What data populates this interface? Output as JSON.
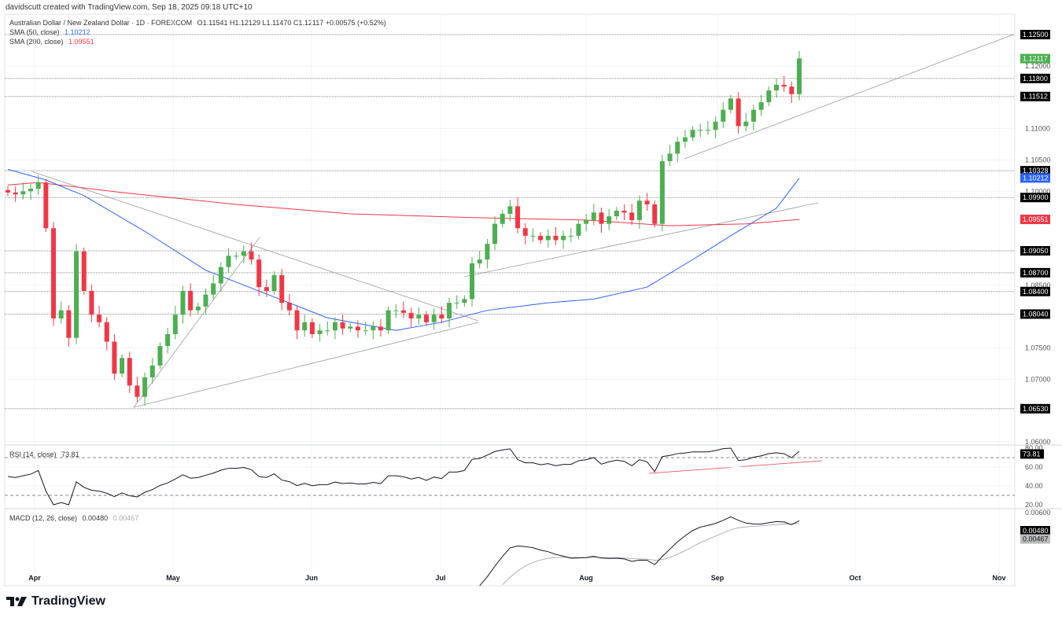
{
  "header": {
    "credit": "davidscutt created with TradingView.com, Sep 18, 2025 09:18 UTC+10",
    "symbol_line": "Australian Dollar / New Zealand Dollar · 1D · FOREXCOM",
    "ohlc": "O1.11541  H1.12129  L1.11470  C1.12117  +0.00575 (+0.52%)",
    "sma50_label": "SMA (50, close)",
    "sma50_value": "1.10212",
    "sma200_label": "SMA (200, close)",
    "sma200_value": "1.09551",
    "rsi_label": "RSI (14, close)",
    "rsi_value": "73.81",
    "macd_label": "MACD (12, 26, close)",
    "macd_value": "0.00480",
    "signal_value": "0.00467"
  },
  "logo": "TradingView",
  "colors": {
    "up": "#4caf50",
    "down": "#f23645",
    "sma50": "#2962ff",
    "sma200": "#f23645",
    "rsi_trend": "#f23645"
  },
  "chart_data": {
    "type": "candlestick",
    "title": "Australian Dollar / New Zealand Dollar · 1D · FOREXCOM",
    "ylim": [
      1.06,
      1.125
    ],
    "x_ticks": [
      "Apr",
      "May",
      "Jun",
      "Jul",
      "Aug",
      "Sep",
      "Oct",
      "Nov"
    ],
    "y_ticks": [
      "1.12000",
      "1.11000",
      "1.10500",
      "1.10000",
      "1.08500",
      "1.07500",
      "1.07000",
      "1.06000"
    ],
    "levels": [
      "1.12500",
      "1.11800",
      "1.11512",
      "1.10328",
      "1.09900",
      "1.09050",
      "1.08700",
      "1.08400",
      "1.08040",
      "1.06530"
    ],
    "last_price": "1.12117",
    "closes": [
      1.0998,
      1.0995,
      1.1,
      1.1004,
      1.1014,
      1.0941,
      1.0797,
      1.081,
      1.0766,
      1.0904,
      1.0841,
      1.0803,
      1.0791,
      1.076,
      1.0709,
      1.0734,
      1.069,
      1.0672,
      1.0703,
      1.0722,
      1.0753,
      1.0772,
      1.0803,
      1.0841,
      1.081,
      1.0816,
      1.0835,
      1.0853,
      1.0879,
      1.0897,
      1.0897,
      1.0904,
      1.0891,
      1.0847,
      1.0841,
      1.0866,
      1.0822,
      1.081,
      1.0778,
      1.0791,
      1.0772,
      1.0778,
      1.0778,
      1.0791,
      1.0781,
      1.0784,
      1.0778,
      1.0778,
      1.0784,
      1.0778,
      1.081,
      1.081,
      1.0806,
      1.0797,
      1.0803,
      1.0791,
      1.0803,
      1.0797,
      1.0822,
      1.0822,
      1.0828,
      1.0885,
      1.0891,
      1.0916,
      1.0948,
      1.0964,
      1.0976,
      1.0941,
      1.0929,
      1.0929,
      1.0922,
      1.0929,
      1.0922,
      1.0929,
      1.0929,
      1.0948,
      1.0954,
      1.0966,
      1.0948,
      1.096,
      1.0969,
      1.0966,
      1.0954,
      1.0985,
      1.0979,
      1.0948,
      1.1048,
      1.106,
      1.1079,
      1.1086,
      1.1098,
      1.1098,
      1.1098,
      1.1111,
      1.113,
      1.1148,
      1.1104,
      1.1111,
      1.113,
      1.1142,
      1.1161,
      1.117,
      1.1167,
      1.1155,
      1.1212
    ],
    "sma50": [
      [
        0,
        1.1035
      ],
      [
        5,
        1.1018
      ],
      [
        10,
        1.0993
      ],
      [
        18,
        1.0936
      ],
      [
        26,
        1.0874
      ],
      [
        34,
        1.0836
      ],
      [
        42,
        1.0798
      ],
      [
        51,
        1.0778
      ],
      [
        57,
        1.0791
      ],
      [
        63,
        1.081
      ],
      [
        71,
        1.0822
      ],
      [
        77,
        1.0828
      ],
      [
        84,
        1.0847
      ],
      [
        90,
        1.0891
      ],
      [
        95,
        1.0929
      ],
      [
        101,
        1.0973
      ],
      [
        104,
        1.1021
      ]
    ],
    "sma200": [
      [
        0,
        1.101
      ],
      [
        4,
        1.1014
      ],
      [
        15,
        1.0998
      ],
      [
        30,
        1.0979
      ],
      [
        45,
        1.0964
      ],
      [
        61,
        1.0958
      ],
      [
        76,
        1.0954
      ],
      [
        87,
        1.0945
      ],
      [
        97,
        1.0948
      ],
      [
        104,
        1.0955
      ]
    ],
    "rsi": {
      "ticks": [
        "80.00",
        "60.00",
        "40.00",
        "20.00"
      ],
      "ylim": [
        20,
        80
      ]
    },
    "macd": {
      "ticks": [
        "0.00600"
      ],
      "top": 0.006
    }
  }
}
